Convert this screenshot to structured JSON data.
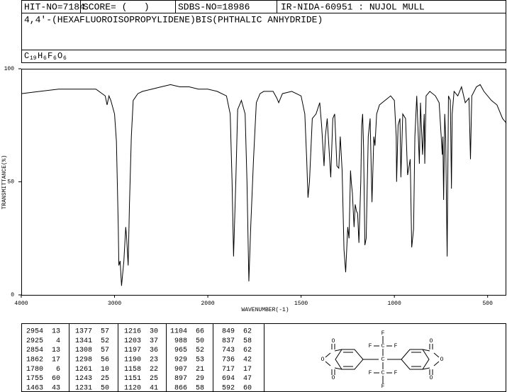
{
  "header": {
    "hit_no": "HIT-NO=7184",
    "score": "SCORE= (   )",
    "sdbs_no": "SDBS-NO=18986",
    "method": "IR-NIDA-60951 : NUJOL MULL",
    "compound": "4,4'-(HEXAFLUOROISOPROPYLIDENE)BIS(PHTHALIC ANHYDRIDE)",
    "formula": [
      "C",
      "19",
      "H",
      "6",
      "F",
      "6",
      "O",
      "6"
    ]
  },
  "chart_data": {
    "type": "line",
    "xlabel": "WAVENUMBER(-1)",
    "ylabel": "TRANSMITTANCE(%)",
    "color": "#000000",
    "xlim": [
      4000,
      400
    ],
    "xticks": [
      4000,
      3000,
      2000,
      1500,
      1000,
      500
    ],
    "ylim": [
      0,
      100
    ],
    "yticks": [
      0,
      50,
      100
    ],
    "x": [
      4000,
      3800,
      3600,
      3400,
      3200,
      3100,
      3080,
      3060,
      3040,
      3000,
      2980,
      2960,
      2954,
      2940,
      2925,
      2900,
      2880,
      2870,
      2854,
      2840,
      2820,
      2800,
      2750,
      2700,
      2600,
      2500,
      2400,
      2300,
      2200,
      2100,
      2000,
      1950,
      1900,
      1880,
      1870,
      1862,
      1850,
      1840,
      1820,
      1800,
      1790,
      1780,
      1770,
      1760,
      1755,
      1740,
      1720,
      1700,
      1650,
      1630,
      1620,
      1600,
      1550,
      1500,
      1480,
      1470,
      1463,
      1455,
      1440,
      1420,
      1400,
      1390,
      1377,
      1370,
      1360,
      1341,
      1330,
      1320,
      1308,
      1298,
      1290,
      1280,
      1270,
      1261,
      1250,
      1243,
      1235,
      1231,
      1225,
      1216,
      1210,
      1203,
      1197,
      1190,
      1180,
      1175,
      1170,
      1165,
      1158,
      1151,
      1140,
      1130,
      1120,
      1110,
      1104,
      1095,
      1080,
      1050,
      1020,
      1000,
      990,
      988,
      980,
      970,
      965,
      955,
      940,
      929,
      915,
      907,
      897,
      890,
      880,
      866,
      860,
      849,
      840,
      837,
      830,
      810,
      780,
      760,
      743,
      740,
      736,
      730,
      725,
      717,
      710,
      700,
      694,
      690,
      680,
      660,
      640,
      620,
      600,
      592,
      585,
      560,
      540,
      520,
      480,
      450,
      420,
      400
    ],
    "values": [
      89,
      90,
      91,
      91,
      91,
      88,
      84,
      88,
      86,
      80,
      68,
      30,
      13,
      15,
      4,
      15,
      30,
      25,
      13,
      40,
      70,
      86,
      89,
      90,
      91,
      92,
      93,
      92,
      92,
      91,
      91,
      90,
      88,
      80,
      50,
      17,
      50,
      82,
      86,
      80,
      50,
      6,
      30,
      50,
      60,
      85,
      89,
      90,
      90,
      87,
      85,
      89,
      90,
      88,
      80,
      60,
      43,
      50,
      78,
      80,
      85,
      75,
      57,
      70,
      78,
      52,
      78,
      80,
      57,
      56,
      70,
      55,
      20,
      10,
      30,
      25,
      55,
      50,
      45,
      30,
      40,
      37,
      36,
      23,
      50,
      75,
      80,
      65,
      22,
      25,
      70,
      78,
      41,
      70,
      66,
      80,
      84,
      86,
      88,
      86,
      70,
      50,
      75,
      78,
      52,
      80,
      78,
      53,
      60,
      21,
      29,
      70,
      88,
      58,
      85,
      62,
      80,
      58,
      88,
      90,
      88,
      85,
      62,
      70,
      42,
      80,
      70,
      17,
      88,
      86,
      47,
      80,
      90,
      88,
      92,
      85,
      87,
      60,
      88,
      92,
      93,
      90,
      86,
      84,
      78,
      76
    ]
  },
  "peak_table": [
    [
      [
        "2954",
        "13"
      ],
      [
        "2925",
        "4"
      ],
      [
        "2854",
        "13"
      ],
      [
        "1862",
        "17"
      ],
      [
        "1780",
        "6"
      ],
      [
        "1755",
        "60"
      ],
      [
        "1463",
        "43"
      ]
    ],
    [
      [
        "1377",
        "57"
      ],
      [
        "1341",
        "52"
      ],
      [
        "1308",
        "57"
      ],
      [
        "1298",
        "56"
      ],
      [
        "1261",
        "10"
      ],
      [
        "1243",
        "25"
      ],
      [
        "1231",
        "50"
      ]
    ],
    [
      [
        "1216",
        "30"
      ],
      [
        "1203",
        "37"
      ],
      [
        "1197",
        "36"
      ],
      [
        "1190",
        "23"
      ],
      [
        "1158",
        "22"
      ],
      [
        "1151",
        "25"
      ],
      [
        "1120",
        "41"
      ]
    ],
    [
      [
        "1104",
        "66"
      ],
      [
        "988",
        "50"
      ],
      [
        "965",
        "52"
      ],
      [
        "929",
        "53"
      ],
      [
        "907",
        "21"
      ],
      [
        "897",
        "29"
      ],
      [
        "866",
        "58"
      ]
    ],
    [
      [
        "849",
        "62"
      ],
      [
        "837",
        "58"
      ],
      [
        "743",
        "62"
      ],
      [
        "736",
        "42"
      ],
      [
        "717",
        "17"
      ],
      [
        "694",
        "47"
      ],
      [
        "592",
        "60"
      ]
    ]
  ],
  "structure": {
    "atoms": [
      "F",
      "F",
      "C",
      "F",
      "C",
      "F",
      "C",
      "F",
      "F",
      "O",
      "O",
      "O",
      "O",
      "O",
      "O"
    ]
  }
}
